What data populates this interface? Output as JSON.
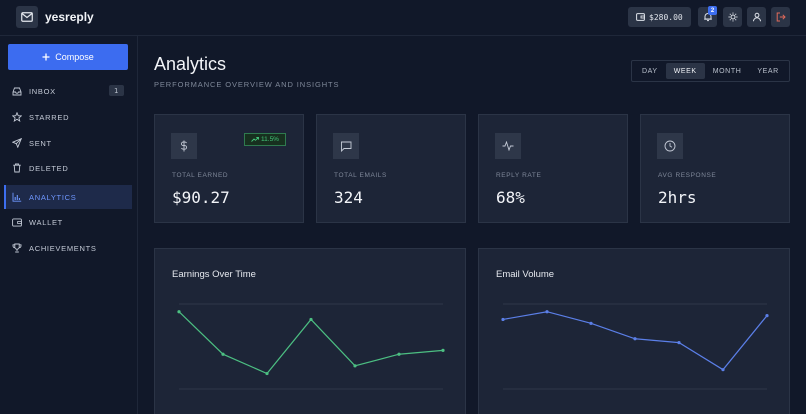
{
  "header": {
    "brand": "yesreply",
    "balance": "$280.00",
    "notification_count": "2"
  },
  "sidebar": {
    "compose_label": "Compose",
    "items": [
      {
        "label": "INBOX",
        "icon": "inbox-icon",
        "count": "1"
      },
      {
        "label": "STARRED",
        "icon": "star-icon"
      },
      {
        "label": "SENT",
        "icon": "send-icon"
      },
      {
        "label": "DELETED",
        "icon": "trash-icon"
      },
      {
        "label": "ANALYTICS",
        "icon": "bar-chart-icon",
        "active": true
      },
      {
        "label": "WALLET",
        "icon": "wallet-icon"
      },
      {
        "label": "ACHIEVEMENTS",
        "icon": "trophy-icon"
      }
    ]
  },
  "main": {
    "title": "Analytics",
    "subtitle": "PERFORMANCE OVERVIEW AND INSIGHTS",
    "ranges": [
      "DAY",
      "WEEK",
      "MONTH",
      "YEAR"
    ],
    "active_range": "WEEK",
    "stats": [
      {
        "label": "TOTAL EARNED",
        "value": "$90.27",
        "icon": "dollar-icon",
        "trend": "11.5%"
      },
      {
        "label": "TOTAL EMAILS",
        "value": "324",
        "icon": "message-icon"
      },
      {
        "label": "REPLY RATE",
        "value": "68%",
        "icon": "activity-icon"
      },
      {
        "label": "AVG RESPONSE",
        "value": "2hrs",
        "icon": "clock-icon"
      }
    ]
  },
  "colors": {
    "accent": "#3d6ef0",
    "earnings_line": "#4cbf82",
    "volume_line": "#5b7fe8",
    "trend_green": "#43c47a"
  },
  "chart_data": [
    {
      "type": "line",
      "title": "Earnings Over Time",
      "series": [
        {
          "values": [
            100,
            89,
            84,
            98,
            86,
            89,
            90
          ]
        }
      ],
      "ylim": [
        80,
        102
      ],
      "grid": true
    },
    {
      "type": "line",
      "title": "Email Volume",
      "series": [
        {
          "values": [
            98,
            100,
            97,
            93,
            92,
            85,
            99
          ]
        }
      ],
      "ylim": [
        80,
        102
      ],
      "grid": true
    }
  ]
}
